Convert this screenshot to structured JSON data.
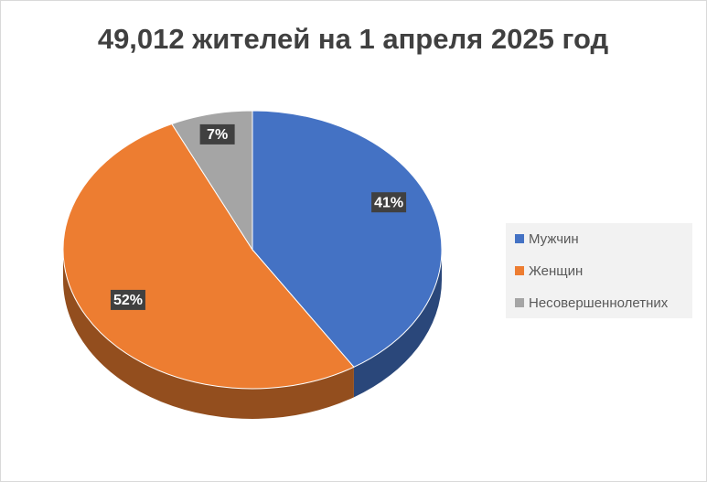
{
  "chart_data": {
    "type": "pie",
    "title": "49,012 жителей на 1 апреля 2025 год",
    "categories": [
      "Мужчин",
      "Женщин",
      "Несовершеннолетних"
    ],
    "values": [
      41,
      52,
      7
    ],
    "value_labels": [
      "41%",
      "52%",
      "7%"
    ],
    "colors": [
      "#4472c4",
      "#ed7d31",
      "#a5a5a5"
    ],
    "legend": "right"
  }
}
